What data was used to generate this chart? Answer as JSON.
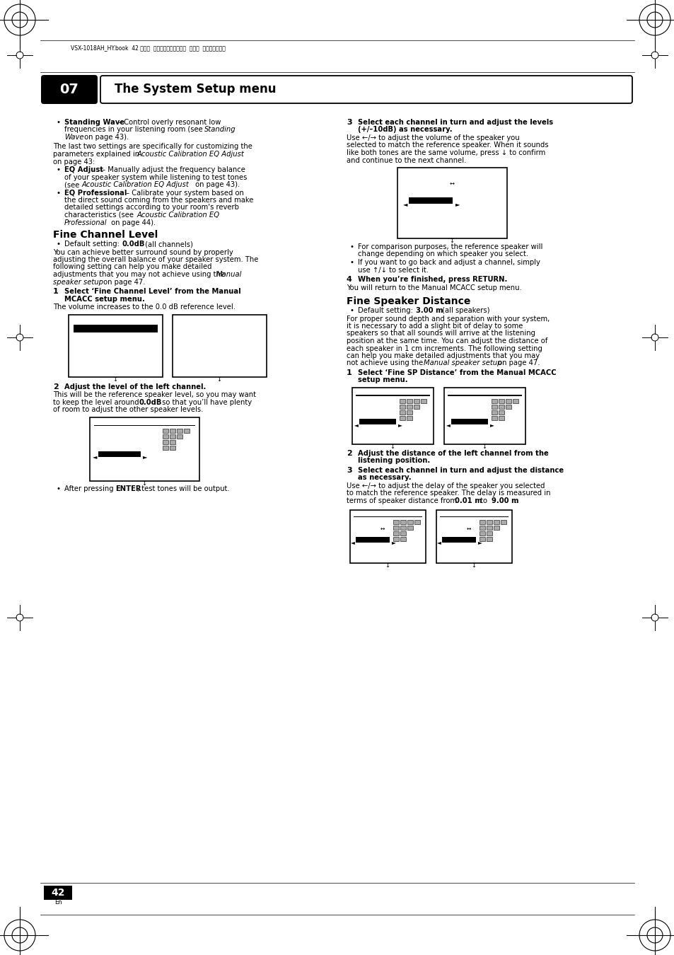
{
  "page_bg": "#ffffff",
  "header_bar_color": "#000000",
  "header_text": "The System Setup menu",
  "header_num": "07",
  "page_number": "42",
  "header_file_text": "VSX-1018AH_HY.book  42 ページ  ２００８年４月１６日  水曜日  午後７時２５分"
}
